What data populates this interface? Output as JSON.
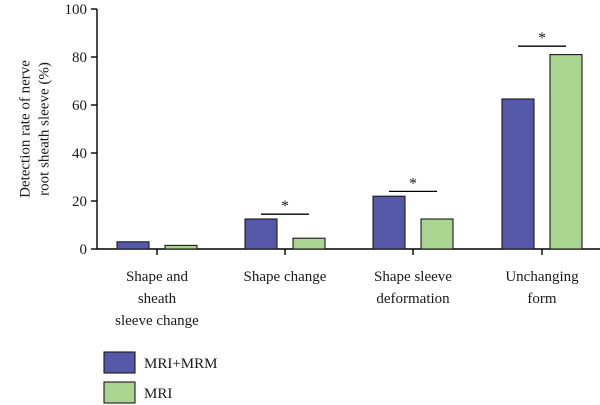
{
  "chart_data": {
    "type": "bar",
    "categories": [
      [
        "Shape and",
        "sheath",
        "sleeve change"
      ],
      [
        "Shape change"
      ],
      [
        "Shape sleeve",
        "deformation"
      ],
      [
        "Unchanging",
        "form"
      ]
    ],
    "series": [
      {
        "name": "MRI+MRM",
        "values": [
          3,
          12.5,
          22,
          62.5
        ],
        "color": "#5557a8"
      },
      {
        "name": "MRI",
        "values": [
          1.5,
          4.5,
          12.5,
          81
        ],
        "color": "#a9d591"
      }
    ],
    "ylabel": [
      "Detection rate of nerve",
      "root sheath sleeve (%)"
    ],
    "ylim": [
      0,
      100
    ],
    "yticks": [
      "0",
      "20",
      "40",
      "60",
      "80",
      "100"
    ],
    "significance": [
      {
        "category": 1,
        "label": "*",
        "y": 14.5
      },
      {
        "category": 2,
        "label": "*",
        "y": 24
      },
      {
        "category": 3,
        "label": "*",
        "y": 84.5
      }
    ],
    "legend_position": "bottom-left",
    "grid": false
  }
}
